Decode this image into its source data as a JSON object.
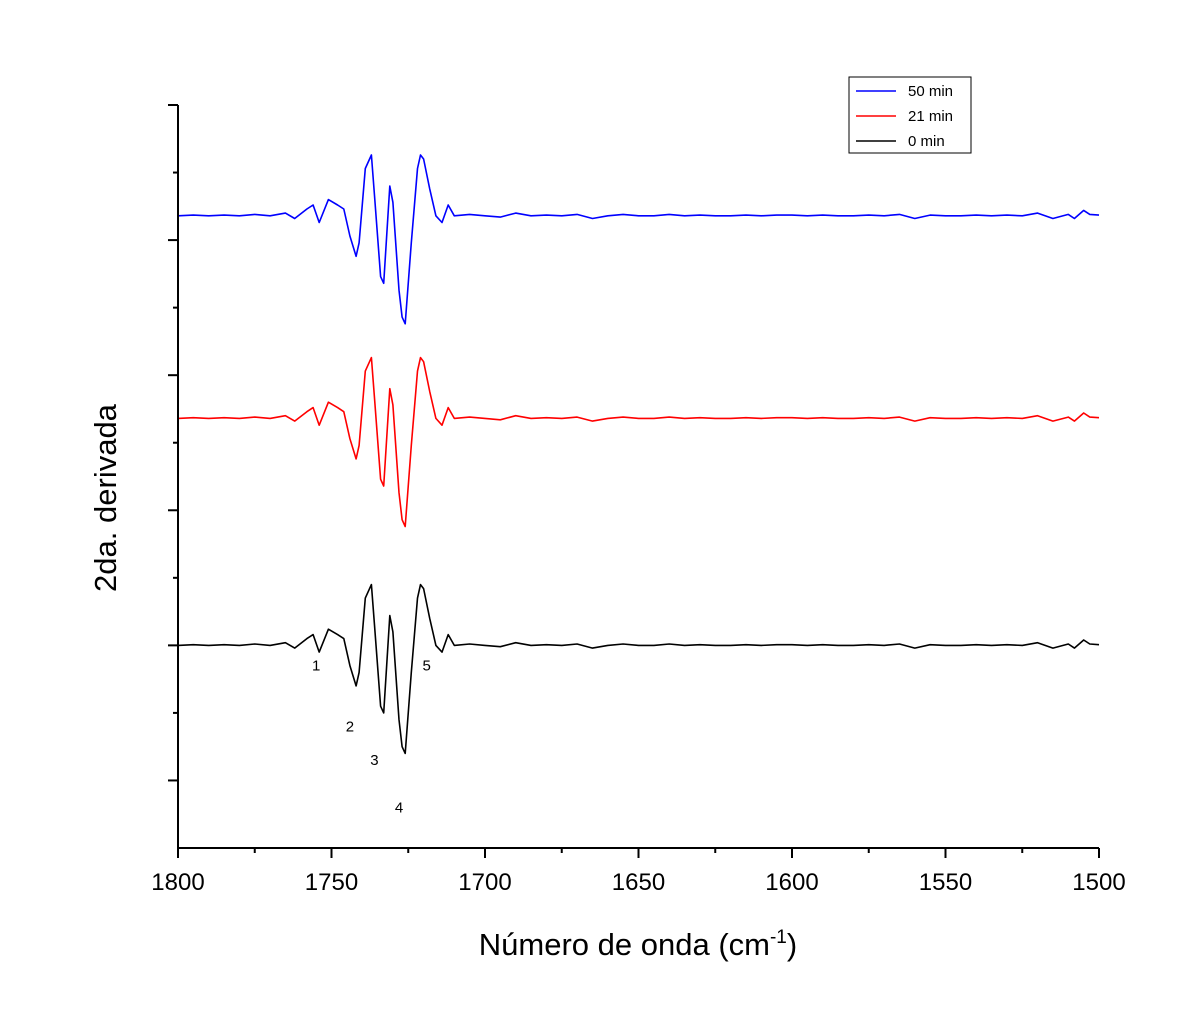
{
  "chart_data": {
    "type": "line",
    "title": "",
    "xlabel": "Número de onda (cm",
    "xlabel_sup": "-1",
    "xlabel_close": ")",
    "ylabel": "2da. derivada",
    "xlim": [
      1800,
      1500
    ],
    "ylim": [
      -1.5,
      4.0
    ],
    "x_ticks": [
      1800,
      1750,
      1700,
      1650,
      1600,
      1550,
      1500
    ],
    "x_tick_labels": [
      "1800",
      "1750",
      "1700",
      "1650",
      "1600",
      "1550",
      "1500"
    ],
    "y_major_ticks": [
      -1,
      0,
      1,
      2,
      3,
      4
    ],
    "y_minor_ticks": [
      -0.5,
      0.5,
      1.5,
      2.5,
      3.5
    ],
    "y_tick_labels_visible": false,
    "legend_position": "top-right",
    "series": [
      {
        "name": "50 min",
        "color": "#0000ff",
        "baseline": 3.18,
        "points": [
          [
            1800,
            0
          ],
          [
            1795,
            0.005
          ],
          [
            1790,
            0
          ],
          [
            1785,
            0.005
          ],
          [
            1780,
            0
          ],
          [
            1775,
            0.01
          ],
          [
            1770,
            0
          ],
          [
            1765,
            0.02
          ],
          [
            1762,
            -0.02
          ],
          [
            1758,
            0.05
          ],
          [
            1756,
            0.08
          ],
          [
            1754,
            -0.05
          ],
          [
            1751,
            0.12
          ],
          [
            1748,
            0.08
          ],
          [
            1746,
            0.05
          ],
          [
            1744,
            -0.15
          ],
          [
            1742,
            -0.3
          ],
          [
            1741,
            -0.2
          ],
          [
            1739,
            0.35
          ],
          [
            1737,
            0.45
          ],
          [
            1736,
            0.15
          ],
          [
            1734,
            -0.45
          ],
          [
            1733,
            -0.5
          ],
          [
            1731,
            0.22
          ],
          [
            1730,
            0.1
          ],
          [
            1728,
            -0.55
          ],
          [
            1727,
            -0.75
          ],
          [
            1726,
            -0.8
          ],
          [
            1724,
            -0.2
          ],
          [
            1722,
            0.35
          ],
          [
            1721,
            0.45
          ],
          [
            1720,
            0.42
          ],
          [
            1718,
            0.2
          ],
          [
            1716,
            0.0
          ],
          [
            1714,
            -0.05
          ],
          [
            1712,
            0.08
          ],
          [
            1710,
            0.0
          ],
          [
            1705,
            0.01
          ],
          [
            1700,
            0
          ],
          [
            1695,
            -0.01
          ],
          [
            1690,
            0.02
          ],
          [
            1685,
            0
          ],
          [
            1680,
            0.005
          ],
          [
            1675,
            0
          ],
          [
            1670,
            0.01
          ],
          [
            1665,
            -0.02
          ],
          [
            1660,
            0
          ],
          [
            1655,
            0.01
          ],
          [
            1650,
            0
          ],
          [
            1645,
            0
          ],
          [
            1640,
            0.01
          ],
          [
            1635,
            0
          ],
          [
            1630,
            0.005
          ],
          [
            1625,
            0
          ],
          [
            1620,
            0
          ],
          [
            1615,
            0.005
          ],
          [
            1610,
            0
          ],
          [
            1605,
            0.005
          ],
          [
            1600,
            0.005
          ],
          [
            1595,
            0
          ],
          [
            1590,
            0.005
          ],
          [
            1585,
            0
          ],
          [
            1580,
            0
          ],
          [
            1575,
            0.005
          ],
          [
            1570,
            0
          ],
          [
            1565,
            0.01
          ],
          [
            1560,
            -0.02
          ],
          [
            1555,
            0.005
          ],
          [
            1550,
            0
          ],
          [
            1545,
            0
          ],
          [
            1540,
            0.005
          ],
          [
            1535,
            0
          ],
          [
            1530,
            0.005
          ],
          [
            1525,
            0
          ],
          [
            1520,
            0.02
          ],
          [
            1515,
            -0.02
          ],
          [
            1510,
            0.01
          ],
          [
            1508,
            -0.02
          ],
          [
            1505,
            0.04
          ],
          [
            1503,
            0.01
          ],
          [
            1500,
            0.005
          ]
        ]
      },
      {
        "name": "21 min",
        "color": "#ff0000",
        "baseline": 1.68,
        "points": [
          [
            1800,
            0
          ],
          [
            1795,
            0.005
          ],
          [
            1790,
            0
          ],
          [
            1785,
            0.005
          ],
          [
            1780,
            0
          ],
          [
            1775,
            0.01
          ],
          [
            1770,
            0
          ],
          [
            1765,
            0.02
          ],
          [
            1762,
            -0.02
          ],
          [
            1758,
            0.05
          ],
          [
            1756,
            0.08
          ],
          [
            1754,
            -0.05
          ],
          [
            1751,
            0.12
          ],
          [
            1748,
            0.08
          ],
          [
            1746,
            0.05
          ],
          [
            1744,
            -0.15
          ],
          [
            1742,
            -0.3
          ],
          [
            1741,
            -0.2
          ],
          [
            1739,
            0.35
          ],
          [
            1737,
            0.45
          ],
          [
            1736,
            0.15
          ],
          [
            1734,
            -0.45
          ],
          [
            1733,
            -0.5
          ],
          [
            1731,
            0.22
          ],
          [
            1730,
            0.1
          ],
          [
            1728,
            -0.55
          ],
          [
            1727,
            -0.75
          ],
          [
            1726,
            -0.8
          ],
          [
            1724,
            -0.2
          ],
          [
            1722,
            0.35
          ],
          [
            1721,
            0.45
          ],
          [
            1720,
            0.42
          ],
          [
            1718,
            0.2
          ],
          [
            1716,
            0.0
          ],
          [
            1714,
            -0.05
          ],
          [
            1712,
            0.08
          ],
          [
            1710,
            0.0
          ],
          [
            1705,
            0.01
          ],
          [
            1700,
            0
          ],
          [
            1695,
            -0.01
          ],
          [
            1690,
            0.02
          ],
          [
            1685,
            0
          ],
          [
            1680,
            0.005
          ],
          [
            1675,
            0
          ],
          [
            1670,
            0.01
          ],
          [
            1665,
            -0.02
          ],
          [
            1660,
            0
          ],
          [
            1655,
            0.01
          ],
          [
            1650,
            0
          ],
          [
            1645,
            0
          ],
          [
            1640,
            0.01
          ],
          [
            1635,
            0
          ],
          [
            1630,
            0.005
          ],
          [
            1625,
            0
          ],
          [
            1620,
            0
          ],
          [
            1615,
            0.005
          ],
          [
            1610,
            0
          ],
          [
            1605,
            0.005
          ],
          [
            1600,
            0.005
          ],
          [
            1595,
            0
          ],
          [
            1590,
            0.005
          ],
          [
            1585,
            0
          ],
          [
            1580,
            0
          ],
          [
            1575,
            0.005
          ],
          [
            1570,
            0
          ],
          [
            1565,
            0.01
          ],
          [
            1560,
            -0.02
          ],
          [
            1555,
            0.005
          ],
          [
            1550,
            0
          ],
          [
            1545,
            0
          ],
          [
            1540,
            0.005
          ],
          [
            1535,
            0
          ],
          [
            1530,
            0.005
          ],
          [
            1525,
            0
          ],
          [
            1520,
            0.02
          ],
          [
            1515,
            -0.02
          ],
          [
            1510,
            0.01
          ],
          [
            1508,
            -0.02
          ],
          [
            1505,
            0.04
          ],
          [
            1503,
            0.01
          ],
          [
            1500,
            0.005
          ]
        ]
      },
      {
        "name": "0 min",
        "color": "#000000",
        "baseline": 0.0,
        "points": [
          [
            1800,
            0
          ],
          [
            1795,
            0.005
          ],
          [
            1790,
            0
          ],
          [
            1785,
            0.005
          ],
          [
            1780,
            0
          ],
          [
            1775,
            0.01
          ],
          [
            1770,
            0
          ],
          [
            1765,
            0.02
          ],
          [
            1762,
            -0.02
          ],
          [
            1758,
            0.05
          ],
          [
            1756,
            0.08
          ],
          [
            1754,
            -0.05
          ],
          [
            1751,
            0.12
          ],
          [
            1748,
            0.08
          ],
          [
            1746,
            0.05
          ],
          [
            1744,
            -0.15
          ],
          [
            1742,
            -0.3
          ],
          [
            1741,
            -0.2
          ],
          [
            1739,
            0.35
          ],
          [
            1737,
            0.45
          ],
          [
            1736,
            0.15
          ],
          [
            1734,
            -0.45
          ],
          [
            1733,
            -0.5
          ],
          [
            1731,
            0.22
          ],
          [
            1730,
            0.1
          ],
          [
            1728,
            -0.55
          ],
          [
            1727,
            -0.75
          ],
          [
            1726,
            -0.8
          ],
          [
            1724,
            -0.2
          ],
          [
            1722,
            0.35
          ],
          [
            1721,
            0.45
          ],
          [
            1720,
            0.42
          ],
          [
            1718,
            0.2
          ],
          [
            1716,
            0.0
          ],
          [
            1714,
            -0.05
          ],
          [
            1712,
            0.08
          ],
          [
            1710,
            0.0
          ],
          [
            1705,
            0.01
          ],
          [
            1700,
            0
          ],
          [
            1695,
            -0.01
          ],
          [
            1690,
            0.02
          ],
          [
            1685,
            0
          ],
          [
            1680,
            0.005
          ],
          [
            1675,
            0
          ],
          [
            1670,
            0.01
          ],
          [
            1665,
            -0.02
          ],
          [
            1660,
            0
          ],
          [
            1655,
            0.01
          ],
          [
            1650,
            0
          ],
          [
            1645,
            0
          ],
          [
            1640,
            0.01
          ],
          [
            1635,
            0
          ],
          [
            1630,
            0.005
          ],
          [
            1625,
            0
          ],
          [
            1620,
            0
          ],
          [
            1615,
            0.005
          ],
          [
            1610,
            0
          ],
          [
            1605,
            0.005
          ],
          [
            1600,
            0.005
          ],
          [
            1595,
            0
          ],
          [
            1590,
            0.005
          ],
          [
            1585,
            0
          ],
          [
            1580,
            0
          ],
          [
            1575,
            0.005
          ],
          [
            1570,
            0
          ],
          [
            1565,
            0.01
          ],
          [
            1560,
            -0.02
          ],
          [
            1555,
            0.005
          ],
          [
            1550,
            0
          ],
          [
            1545,
            0
          ],
          [
            1540,
            0.005
          ],
          [
            1535,
            0
          ],
          [
            1530,
            0.005
          ],
          [
            1525,
            0
          ],
          [
            1520,
            0.02
          ],
          [
            1515,
            -0.02
          ],
          [
            1510,
            0.01
          ],
          [
            1508,
            -0.02
          ],
          [
            1505,
            0.04
          ],
          [
            1503,
            0.01
          ],
          [
            1500,
            0.005
          ]
        ]
      }
    ],
    "annotations": [
      {
        "label": "1",
        "x": 1755,
        "y": -0.15
      },
      {
        "label": "2",
        "x": 1744,
        "y": -0.6
      },
      {
        "label": "3",
        "x": 1736,
        "y": -0.85
      },
      {
        "label": "4",
        "x": 1728,
        "y": -1.2
      },
      {
        "label": "5",
        "x": 1719,
        "y": -0.15
      }
    ]
  }
}
